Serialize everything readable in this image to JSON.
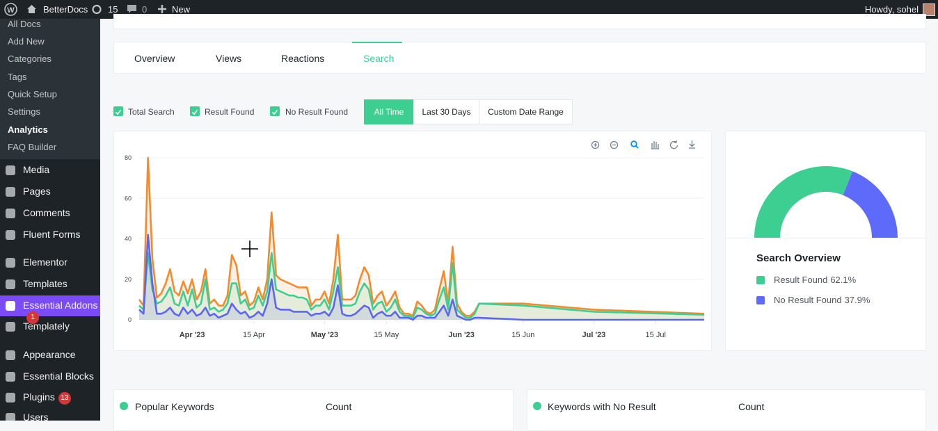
{
  "admin_bar": {
    "site": "BetterDocs",
    "updates": 15,
    "comments": 0,
    "new": "New",
    "greeting": "Howdy, sohel"
  },
  "sidebar": {
    "submenu": [
      {
        "label": "All Docs"
      },
      {
        "label": "Add New"
      },
      {
        "label": "Categories"
      },
      {
        "label": "Tags"
      },
      {
        "label": "Quick Setup"
      },
      {
        "label": "Settings"
      },
      {
        "label": "Analytics",
        "current": true
      },
      {
        "label": "FAQ Builder"
      }
    ],
    "menu": [
      {
        "label": "Media"
      },
      {
        "label": "Pages"
      },
      {
        "label": "Comments"
      },
      {
        "label": "Fluent Forms"
      },
      {
        "label": "Elementor"
      },
      {
        "label": "Templates"
      },
      {
        "label": "Essential Addons",
        "badge": 1,
        "highlight": true
      },
      {
        "label": "Templately"
      },
      {
        "label": "Appearance"
      },
      {
        "label": "Essential Blocks"
      },
      {
        "label": "Plugins",
        "badge": 13
      },
      {
        "label": "Users"
      }
    ]
  },
  "tabs": [
    {
      "label": "Overview"
    },
    {
      "label": "Views"
    },
    {
      "label": "Reactions"
    },
    {
      "label": "Search",
      "active": true
    }
  ],
  "date_ranges": [
    {
      "label": "All Time",
      "active": true
    },
    {
      "label": "Last 30 Days"
    },
    {
      "label": "Custom Date Range"
    }
  ],
  "chart_data": [
    {
      "type": "area",
      "x": [
        "2023-03-20",
        "2023-03-21",
        "2023-03-22",
        "2023-03-23",
        "2023-03-24",
        "2023-03-25",
        "2023-03-26",
        "2023-03-27",
        "2023-03-28",
        "2023-03-29",
        "2023-03-30",
        "2023-03-31",
        "2023-04-01",
        "2023-04-02",
        "2023-04-03",
        "2023-04-04",
        "2023-04-05",
        "2023-04-06",
        "2023-04-07",
        "2023-04-08",
        "2023-04-09",
        "2023-04-10",
        "2023-04-11",
        "2023-04-12",
        "2023-04-13",
        "2023-04-14",
        "2023-04-15",
        "2023-04-16",
        "2023-04-17",
        "2023-04-18",
        "2023-04-19",
        "2023-04-20",
        "2023-04-21",
        "2023-04-22",
        "2023-04-23",
        "2023-04-24",
        "2023-04-25",
        "2023-04-26",
        "2023-04-27",
        "2023-04-28",
        "2023-04-29",
        "2023-04-30",
        "2023-05-01",
        "2023-05-02",
        "2023-05-03",
        "2023-05-04",
        "2023-05-05",
        "2023-05-06",
        "2023-05-07",
        "2023-05-08",
        "2023-05-09",
        "2023-05-10",
        "2023-05-11",
        "2023-05-12",
        "2023-05-13",
        "2023-05-14",
        "2023-05-15",
        "2023-05-16",
        "2023-05-17",
        "2023-05-18",
        "2023-05-19",
        "2023-05-20",
        "2023-05-21",
        "2023-05-22",
        "2023-05-23",
        "2023-05-24",
        "2023-05-25",
        "2023-05-26",
        "2023-05-27",
        "2023-05-28",
        "2023-05-29",
        "2023-05-30",
        "2023-05-31",
        "2023-06-01",
        "2023-06-02",
        "2023-06-03",
        "2023-06-04",
        "2023-06-05",
        "2023-06-15",
        "2023-07-01",
        "2023-07-26"
      ],
      "series": [
        {
          "name": "Total Search",
          "color": "#f58a2c",
          "visible": true,
          "values": [
            10,
            7,
            80,
            30,
            11,
            13,
            18,
            25,
            14,
            12,
            19,
            13,
            20,
            10,
            14,
            25,
            8,
            10,
            7,
            7,
            12,
            32,
            27,
            12,
            14,
            7,
            9,
            16,
            10,
            20,
            53,
            22,
            20,
            19,
            18,
            17,
            16,
            16,
            16,
            7,
            10,
            10,
            14,
            8,
            20,
            42,
            10,
            10,
            10,
            12,
            20,
            26,
            22,
            8,
            12,
            14,
            7,
            10,
            14,
            6,
            3,
            3,
            2,
            9,
            7,
            4,
            3,
            5,
            15,
            24,
            8,
            36,
            8,
            4,
            2,
            2,
            4,
            8,
            8,
            5,
            3
          ]
        },
        {
          "name": "Result Found",
          "color": "#3ccf91",
          "visible": true,
          "values": [
            7,
            5,
            33,
            15,
            8,
            9,
            12,
            16,
            8,
            7,
            14,
            7,
            15,
            6,
            8,
            20,
            5,
            6,
            4,
            5,
            8,
            18,
            18,
            8,
            10,
            5,
            6,
            12,
            7,
            14,
            33,
            15,
            14,
            13,
            12,
            12,
            11,
            11,
            10,
            5,
            7,
            7,
            10,
            5,
            14,
            26,
            7,
            7,
            7,
            8,
            14,
            18,
            15,
            5,
            8,
            9,
            4,
            6,
            10,
            4,
            2,
            2,
            1,
            6,
            5,
            3,
            2,
            3,
            10,
            16,
            5,
            28,
            5,
            3,
            1,
            1,
            3,
            8,
            7,
            4,
            2.5
          ]
        },
        {
          "name": "No Result Found",
          "color": "#5b67f0",
          "visible": true,
          "values": [
            5,
            3,
            42,
            18,
            3,
            3,
            4,
            6,
            3,
            2,
            6,
            3,
            5,
            2,
            3,
            6,
            2,
            3,
            1,
            2,
            3,
            8,
            5,
            3,
            4,
            1,
            2,
            4,
            2,
            8,
            20,
            6,
            5,
            5,
            5,
            4,
            4,
            4,
            4,
            2,
            3,
            3,
            4,
            2,
            6,
            17,
            3,
            2,
            2,
            3,
            5,
            7,
            6,
            1,
            3,
            4,
            2,
            2,
            4,
            1,
            1,
            1,
            0,
            2,
            2,
            1,
            1,
            1,
            4,
            7,
            2,
            10,
            2,
            1,
            0,
            0,
            1,
            1,
            0,
            0,
            0
          ]
        }
      ],
      "xlim": [
        "2023-03-20",
        "2023-07-26"
      ],
      "xticks": [
        {
          "value": "2023-04-01",
          "label": "Apr '23"
        },
        {
          "value": "2023-04-15",
          "label": "15 Apr"
        },
        {
          "value": "2023-05-01",
          "label": "May '23"
        },
        {
          "value": "2023-05-15",
          "label": "15 May"
        },
        {
          "value": "2023-06-01",
          "label": "Jun '23"
        },
        {
          "value": "2023-06-15",
          "label": "15 Jun"
        },
        {
          "value": "2023-07-01",
          "label": "Jul '23"
        },
        {
          "value": "2023-07-15",
          "label": "15 Jul"
        }
      ],
      "ylim": [
        0,
        80
      ],
      "yticks": [
        0,
        20,
        40,
        60,
        80
      ],
      "grid": true
    },
    {
      "type": "donut",
      "title": "Search Overview",
      "categories": [
        "Result Found",
        "No Result Found"
      ],
      "values": [
        62.1,
        37.9
      ],
      "value_labels": [
        "62.1%",
        "37.9%"
      ],
      "colors": [
        "#3ccf91",
        "#5e6bfa"
      ],
      "half": true
    }
  ],
  "tables": [
    {
      "columns": [
        "Popular Keywords",
        "Count"
      ]
    },
    {
      "columns": [
        "Keywords with No Result",
        "Count"
      ]
    }
  ]
}
